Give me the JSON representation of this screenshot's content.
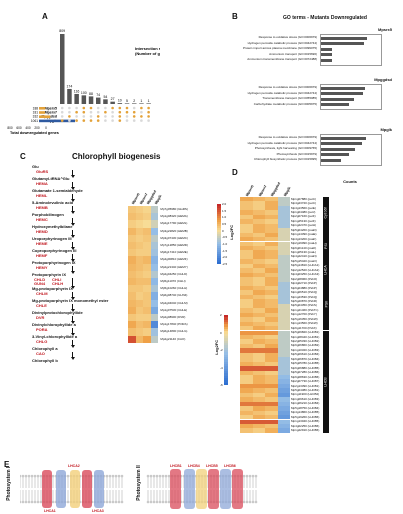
{
  "panelA": {
    "label": "A",
    "ylabel": "Intersection size (Number of genes)",
    "intersections": [
      809,
      174,
      116,
      100,
      88,
      74,
      54,
      27,
      10,
      5,
      2,
      1,
      1
    ],
    "top_label": "809",
    "sets": [
      {
        "name": "Mpsrx5",
        "size": "188"
      },
      {
        "name": "Mpsrx7",
        "size": "181"
      },
      {
        "name": "Mpggdsd",
        "size": "332"
      },
      {
        "name": "Mpglk",
        "size": "1061"
      }
    ],
    "set_axis_ticks": [
      "800",
      "600",
      "400",
      "200",
      "0"
    ],
    "set_axis_title": "Total downregulated genes"
  },
  "panelB": {
    "label": "B",
    "title": "GO terms - Mutants Downregulated",
    "xlabel": "Counts",
    "groups": [
      {
        "name": "Mpsrx5",
        "terms": [
          {
            "term": "Response to oxidative stress (GO:0006979)",
            "value": 13
          },
          {
            "term": "Hydrogen peroxide catabolic process (GO:0042744)",
            "value": 12
          },
          {
            "term": "Protein import across plasma membrane (GO:0099075)",
            "value": 3
          },
          {
            "term": "Ammonium transport (GO:0015696)",
            "value": 3
          },
          {
            "term": "Ammonium transmembrane transport (GO:0072488)",
            "value": 3
          }
        ]
      },
      {
        "name": "Mpggdsd",
        "terms": [
          {
            "term": "Response to oxidative stress (GO:0006979)",
            "value": 16
          },
          {
            "term": "Hydrogen peroxide catabolic process (GO:0042744)",
            "value": 15
          },
          {
            "term": "Transmembrane transport (GO:0055085)",
            "value": 12
          },
          {
            "term": "Carbohydrate metabolic process (GO:0005975)",
            "value": 10
          }
        ]
      },
      {
        "name": "Mpglk",
        "terms": [
          {
            "term": "Response to oxidative stress (GO:0006979)",
            "value": 40
          },
          {
            "term": "Hydrogen peroxide catabolic process (GO:0042744)",
            "value": 36
          },
          {
            "term": "Photosynthesis, light harvesting (GO:0009765)",
            "value": 30
          },
          {
            "term": "Photosynthesis (GO:0015979)",
            "value": 25
          },
          {
            "term": "Chlorophyll biosynthetic process (GO:0015995)",
            "value": 18
          }
        ]
      }
    ]
  },
  "panelC": {
    "label": "C",
    "title": "Chlorophyll biogenesis",
    "pathway": [
      {
        "metabolite": "Glu",
        "enzymes": [
          "GluRS"
        ]
      },
      {
        "metabolite": "Glutamyl-tRNA^Glu",
        "enzymes": [
          "HEMA"
        ]
      },
      {
        "metabolite": "Glutamate 1-semialdehyde",
        "enzymes": [
          "HEML"
        ]
      },
      {
        "metabolite": "5-Aminolevulinic acid",
        "enzymes": [
          "HEMB"
        ]
      },
      {
        "metabolite": "Porphobilinogen",
        "enzymes": [
          "HEMC"
        ]
      },
      {
        "metabolite": "Hydroxymethylbilane",
        "enzymes": [
          "HEMD"
        ]
      },
      {
        "metabolite": "Uroporphyrinogen III",
        "enzymes": [
          "HEME"
        ]
      },
      {
        "metabolite": "Coproporphyrinogen III",
        "enzymes": [
          "HEMF"
        ]
      },
      {
        "metabolite": "Protoporphyrinogen IX",
        "enzymes": [
          "HEMY"
        ]
      },
      {
        "metabolite": "Protoporphyrin IX",
        "enzymes": [
          "CHLD",
          "CHLI",
          "GUN4",
          "CHLH"
        ]
      },
      {
        "metabolite": "Mg-protoporphyrin IX",
        "enzymes": [
          "CHLM"
        ]
      },
      {
        "metabolite": "Mg-protoporphyrin IX monomethyl ester",
        "enzymes": [
          "CHLE"
        ]
      },
      {
        "metabolite": "Divinylprotochlorophyllide",
        "enzymes": [
          "DVR"
        ]
      },
      {
        "metabolite": "Divinylchlorophyllide a",
        "enzymes": [
          "PORA"
        ]
      },
      {
        "metabolite": "3-Vinyl-chlorophyllide a",
        "enzymes": [
          "CHLG"
        ]
      },
      {
        "metabolite": "Chlorophyll a",
        "enzymes": [
          "CAO"
        ]
      },
      {
        "metabolite": "Chlorophyll b",
        "enzymes": []
      }
    ],
    "columns": [
      "Mpsrx5",
      "Mpsrx7",
      "Mpggdsd",
      "Mpglk"
    ],
    "rows": [
      "Mp7g05980 (GluRS)",
      "Mp1g08320 (HEMA)",
      "Mp2g17790 (HEML)",
      "Mp3g22820 (HEMB)",
      "Mp3g07430 (HEMC)",
      "Mp7g12850 (HEMD)",
      "Mp6g17410 (HEME)",
      "Mp4g00810 (HEMF)",
      "Mp2g21340 (HEMY)",
      "Mp2g04250 (CHLD)",
      "Mp5g11070 (CHLI)",
      "Mp5g10260 (CHLH)",
      "Mp6g08740 (GUN4)",
      "Mp4g04040 (CHLM)",
      "Mp1g07530 (CHLE)",
      "Mp2g08900 (DVR)",
      "Mp1g17840 (PORA)",
      "Mp6g14800 (CHLG)",
      "Mp2g21140 (CAO)"
    ],
    "values": [
      [
        0.3,
        0.2,
        0.1,
        -0.6
      ],
      [
        0.4,
        0.3,
        0.2,
        -0.8
      ],
      [
        0.2,
        0.1,
        0.0,
        -0.4
      ],
      [
        0.5,
        0.3,
        0.4,
        -1.0
      ],
      [
        0.3,
        0.2,
        0.3,
        -0.6
      ],
      [
        0.4,
        0.3,
        0.2,
        -0.8
      ],
      [
        0.3,
        0.2,
        0.2,
        -0.9
      ],
      [
        0.6,
        0.4,
        0.5,
        -1.2
      ],
      [
        0.5,
        0.4,
        0.3,
        -1.0
      ],
      [
        0.4,
        0.3,
        0.2,
        -0.7
      ],
      [
        0.5,
        0.4,
        0.4,
        -1.1
      ],
      [
        0.3,
        0.3,
        0.2,
        -0.8
      ],
      [
        0.4,
        0.2,
        0.3,
        -1.3
      ],
      [
        0.5,
        0.4,
        0.3,
        -1.0
      ],
      [
        0.6,
        0.3,
        0.4,
        -1.4
      ],
      [
        0.3,
        0.2,
        0.2,
        -0.6
      ],
      [
        0.7,
        0.4,
        0.5,
        -2.0
      ],
      [
        0.4,
        0.3,
        0.2,
        -0.9
      ],
      [
        1.6,
        0.5,
        0.8,
        -0.6
      ]
    ],
    "scale_title": "Log2FC",
    "scale_ticks": [
      "2.0",
      "1.5",
      "1.0",
      "0.5",
      "0",
      "-0.5",
      "-1.0",
      "-1.5",
      "-2.0",
      "-2.5"
    ],
    "scale_min": -2.5,
    "scale_max": 2.0
  },
  "panelD": {
    "label": "D",
    "columns": [
      "Mpsrx5",
      "Mpsrx7",
      "Mpggdsd",
      "Mpglk"
    ],
    "scale_title": "Log2FC",
    "scale_ticks": [
      "2",
      "0",
      "-2",
      "-4",
      "-6"
    ],
    "groups": [
      {
        "name": "Cyt b6f",
        "rows": [
          "Mp1g07880 (petC)",
          "Mp4g23720 (petC)",
          "Mp4g13560 (petE)",
          "Mp1g04480 (petJ)",
          "Mp2g07160 (petF)",
          "Mp1g25130 (petF)",
          "Mp1g22470 (petH)"
        ]
      },
      {
        "name": "PSI",
        "rows": [
          "Mp5g04260 (psaD)",
          "Mp1g14390 (psaE)",
          "Mp4g13200 (psaF)",
          "Mp2g19090 (psaH)",
          "Mp6g01140 (psaK)",
          "Mp1g05130 (psaL)",
          "Mp4g22410 (psaN)",
          "Mp5g15420 (psaO)"
        ]
      },
      {
        "name": "LHCA",
        "rows": [
          "Mp5g14810 (LHCA1)",
          "Mp2g12520 (LHCA2)",
          "Mp4g03250 (LHCA3)"
        ]
      },
      {
        "name": "PSII",
        "rows": [
          "Mp2g08060 (PsbO)",
          "Mp4g02710 (PsbP)",
          "Mp6g04880 (PsbP)",
          "Mp1g06510 (PsbQ)",
          "Mp1g23530 (PsbQ)",
          "Mp5g20870 (PsbR)",
          "Mp5g04350 (PsbS)",
          "Mp1g21460 (PsbTn)",
          "Mp1g12700 (PsbY)",
          "Mp5g16350 (PsbW)",
          "Mp1g13560 (PsbW)",
          "Mp6g11700 (PsbX)"
        ]
      },
      {
        "name": "LHCB",
        "rows": [
          "Mp5g09820 (LHCB1)",
          "Mp1g08440 (LHCB1)",
          "Mp2g05330 (LHCB2)",
          "Mp6g06860 (LHCB2)",
          "Mp1g10320 (LHCB3)",
          "Mp5g09610 (LHCB4)",
          "Mp6g06870 (LHCB4)",
          "Mp5g05780 (LHCB5)",
          "Mp6g06880 (LHCB5)",
          "Mp5g07280 (LHCB6)",
          "Mp6g08630 (LHCB6)",
          "Mp2g07730 (LHCB7)",
          "Mp2g13390 (LHCB1)",
          "Mp5g04380 (LHCB1)",
          "Mp1g11900 (LHCB2)",
          "Mp1g09610 (LHCB3)",
          "Mp1g06210 (LHCB4)",
          "Mp5g18750 (LHCB4)",
          "Mp4g14860 (LHCB5)",
          "Mp5g19260 (LHCB6)",
          "Mp1g13040 (LHCB5)",
          "Mp4g02250 (LHCB6)",
          "Mp1g22910 (LHCB6)"
        ]
      }
    ]
  },
  "panelE": {
    "label": "E",
    "left_title": "Photosystem I",
    "right_title": "Photosystem II",
    "left_tags": [
      "LHCA1",
      "LHCA2",
      "LHCA3"
    ],
    "right_tags": [
      "LHCB1",
      "LHCB4",
      "LHCB5",
      "LHCB6"
    ],
    "colors": {
      "lipid_head": "#c9c9c9",
      "lipid_tail": "#8a8a8a",
      "protein_red": "#d94b5b",
      "protein_blue": "#8fa8d8",
      "protein_yellow": "#f2d07a"
    }
  },
  "colors": {
    "heat_high": "#c62828",
    "heat_mid": "#f5c06a",
    "heat_low": "#2e6fd1",
    "bar": "#555555",
    "dot_on": "#e3a23a",
    "dot_off": "#d9d9d9"
  }
}
